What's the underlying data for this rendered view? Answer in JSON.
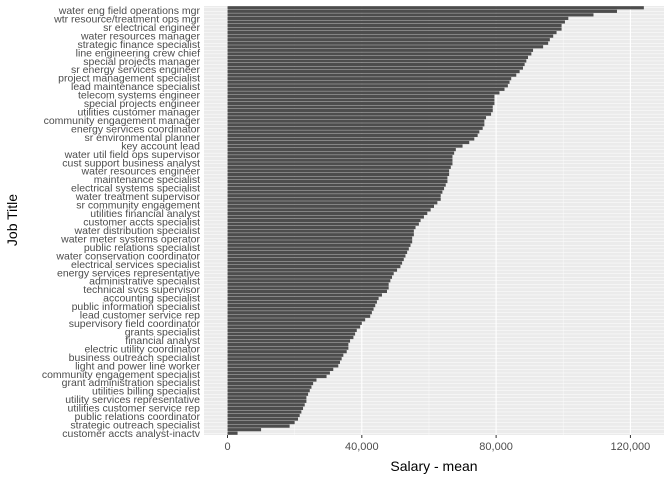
{
  "colors": {
    "panel_bg": "#ebebeb",
    "grid_major": "#ffffff",
    "grid_minor": "#f7f7f7",
    "bar": "#4d4d4d",
    "tick_text": "#4d4d4d",
    "axis_title": "#000000"
  },
  "chart_data": {
    "type": "bar",
    "orientation": "horizontal",
    "xlabel": "Salary - mean",
    "ylabel": "Job Title",
    "xlim": [
      -7000,
      130000
    ],
    "x_ticks": [
      0,
      40000,
      80000,
      120000
    ],
    "x_tick_labels": [
      "0",
      "40,000",
      "80,000",
      "120,000"
    ],
    "grid": true,
    "sorted": "descending",
    "shown_labels": [
      "water eng field operations mgr",
      "wtr resource/treatment ops mgr",
      "sr electrical engineer",
      "water resources manager",
      "strategic finance specialist",
      "line engineering crew chief",
      "special projects manager",
      "sr energy services engineer",
      "project management specialist",
      "lead maintenance specialist",
      "telecom systems engineer",
      "special projects engineer",
      "utilities customer manager",
      "community engagement manager",
      "energy services coordinator",
      "sr environmental planner",
      "key account lead",
      "water util field ops supervisor",
      "cust support business analyst",
      "water resources engineer",
      "maintenance specialist",
      "electrical systems specialist",
      "water treatment supervisor",
      "sr community engagement",
      "utilities financial analyst",
      "customer accts specialist",
      "water distribution specialist",
      "water meter systems operator",
      "public relations specialist",
      "water conservation coordinator",
      "electrical services specialist",
      "energy services representative",
      "administrative specialist",
      "technical svcs supervisor",
      "accounting specialist",
      "public information specialist",
      "lead customer service rep",
      "supervisory field coordinator",
      "grants specialist",
      "financial analyst",
      "electric utility coordinator",
      "business outreach specialist",
      "light and power line worker",
      "community engagement specialist",
      "grant administration specialist",
      "utilities billing specialist",
      "utility services representative",
      "utilities customer service rep",
      "public relations coordinator",
      "strategic outreach specialist",
      "customer accts analyst-inactv"
    ],
    "values": [
      124000,
      116000,
      109000,
      101500,
      100500,
      99500,
      99500,
      98000,
      97000,
      96000,
      95500,
      94000,
      91000,
      90500,
      89500,
      89000,
      88500,
      88000,
      87000,
      86000,
      84500,
      84000,
      83500,
      82500,
      81000,
      79500,
      79500,
      79500,
      79000,
      79000,
      78500,
      77000,
      76500,
      76500,
      76000,
      75000,
      74500,
      73500,
      72000,
      70000,
      68000,
      67500,
      67000,
      67000,
      67000,
      66500,
      66000,
      66000,
      65500,
      65500,
      65000,
      64500,
      64000,
      63500,
      63500,
      62500,
      61500,
      60500,
      59500,
      58500,
      57500,
      57000,
      56000,
      55500,
      55500,
      55000,
      55000,
      54500,
      54000,
      53500,
      53000,
      52500,
      52000,
      51500,
      50500,
      49500,
      49000,
      48500,
      48000,
      48000,
      47500,
      46000,
      45000,
      44500,
      44000,
      43500,
      43000,
      42500,
      41000,
      40000,
      39500,
      38500,
      38000,
      37500,
      36500,
      36000,
      36000,
      35500,
      34500,
      34000,
      33500,
      33000,
      31500,
      30500,
      29500,
      26500,
      25500,
      25000,
      24500,
      24000,
      23500,
      23500,
      23000,
      22500,
      22000,
      21500,
      21000,
      20000,
      18500,
      10000,
      3000
    ]
  }
}
